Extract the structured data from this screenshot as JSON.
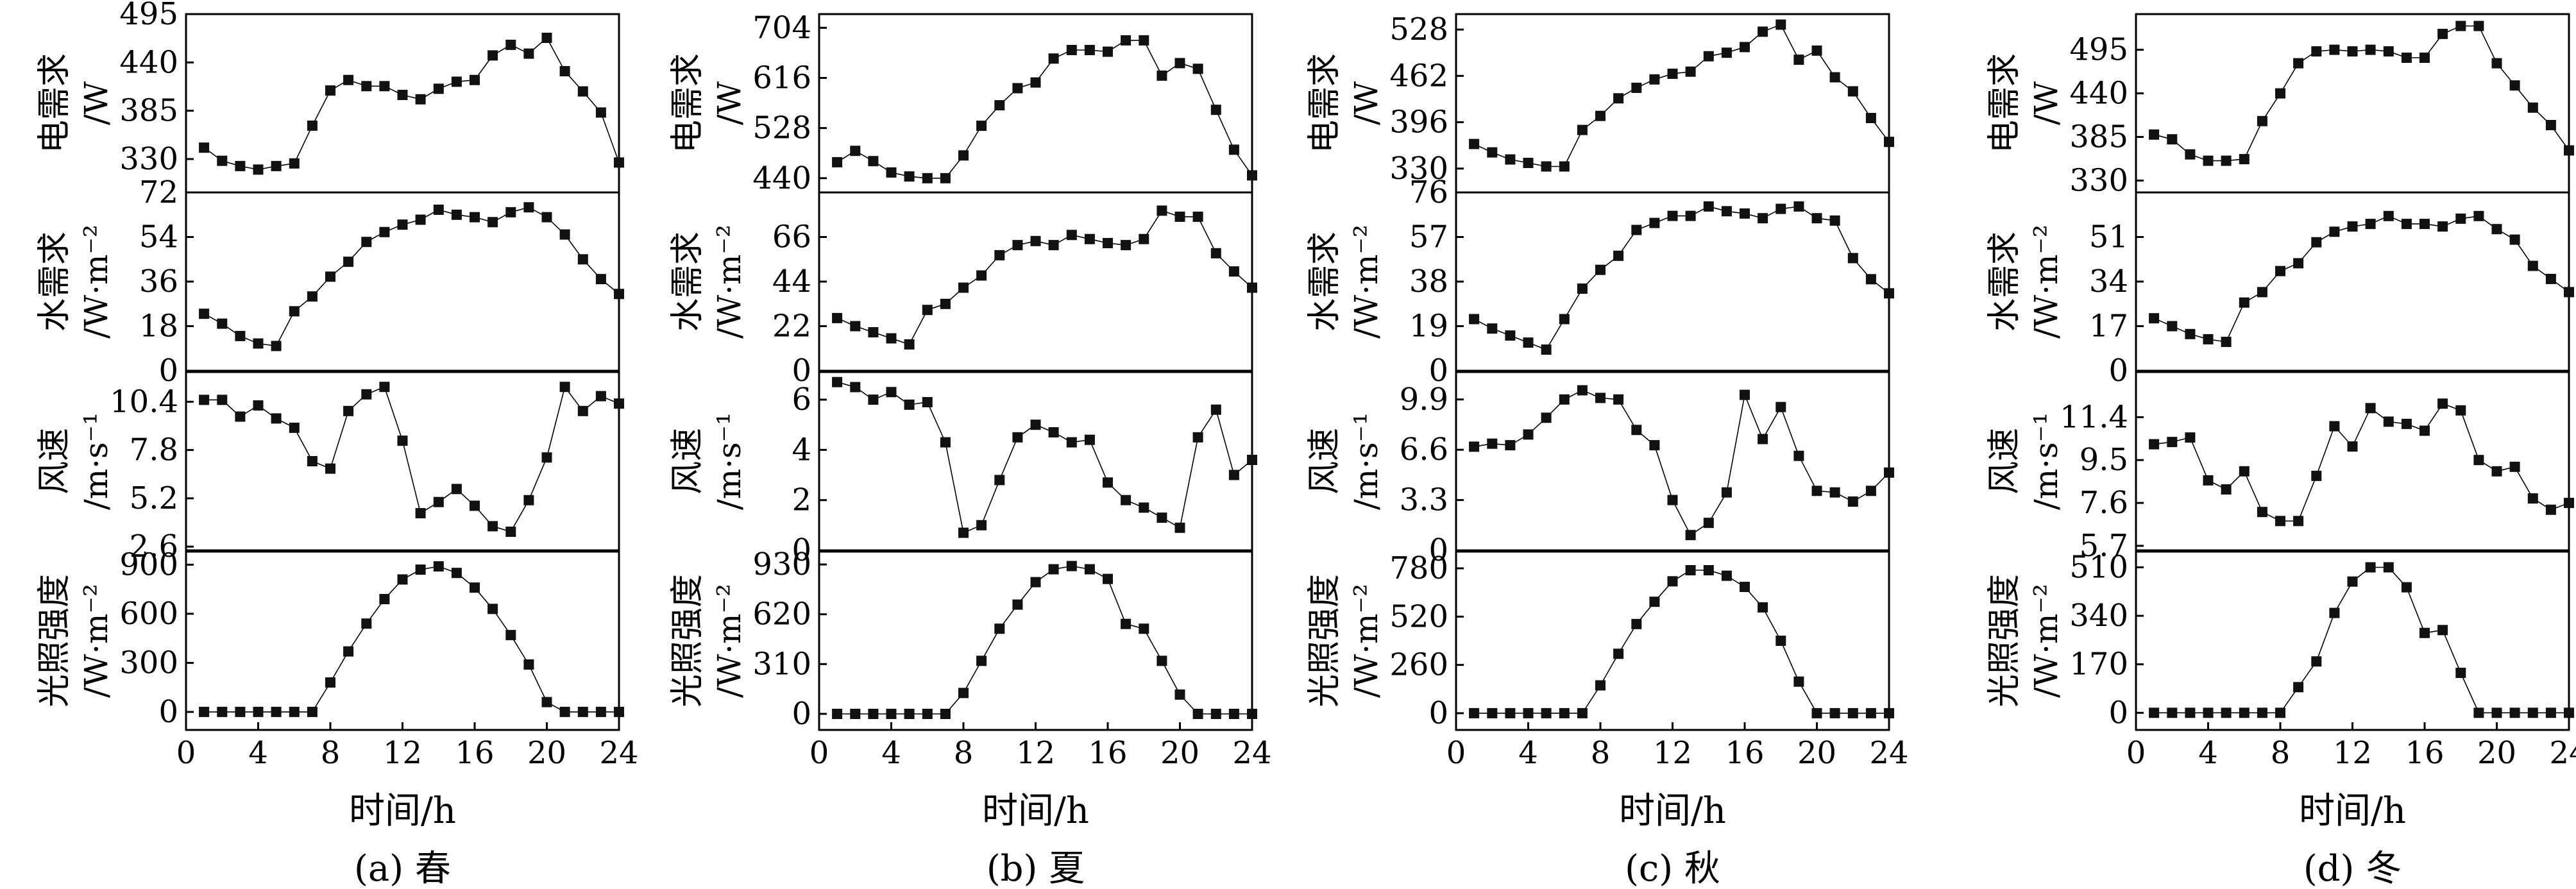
{
  "xlabel": "时间/h",
  "x_ticks": [
    0,
    4,
    8,
    12,
    16,
    20,
    24
  ],
  "row_labels": [
    {
      "name": "电需求",
      "unit": "/W"
    },
    {
      "name": "水需求",
      "unit": "/W·m⁻²"
    },
    {
      "name": "风速",
      "unit": "/m·s⁻¹"
    },
    {
      "name": "光照强度",
      "unit": "/W·m⁻²"
    }
  ],
  "panels": [
    {
      "caption": "(a) 春"
    },
    {
      "caption": "(b) 夏"
    },
    {
      "caption": "(c) 秋"
    },
    {
      "caption": "(d) 冬"
    }
  ],
  "chart_data": [
    {
      "type": "line",
      "caption": "(a) 春",
      "xlabel": "时间/h",
      "xlim": [
        0,
        24
      ],
      "x": [
        1,
        2,
        3,
        4,
        5,
        6,
        7,
        8,
        9,
        10,
        11,
        12,
        13,
        14,
        15,
        16,
        17,
        18,
        19,
        20,
        21,
        22,
        23,
        24
      ],
      "rows": [
        {
          "ylabel": "电需求/W",
          "ylim": [
            292,
            495
          ],
          "yticks": [
            330,
            385,
            440,
            495
          ],
          "values": [
            343,
            328,
            322,
            318,
            322,
            325,
            368,
            408,
            420,
            413,
            413,
            403,
            398,
            410,
            418,
            420,
            448,
            460,
            450,
            468,
            430,
            407,
            383,
            326
          ]
        },
        {
          "ylabel": "水需求/W·m⁻²",
          "ylim": [
            0,
            72
          ],
          "yticks": [
            0,
            18,
            36,
            54,
            72
          ],
          "values": [
            23,
            19,
            14,
            11,
            10,
            24,
            30,
            38,
            44,
            52,
            56,
            59,
            61,
            65,
            63,
            62,
            60,
            64,
            66,
            62,
            55,
            45,
            37,
            31
          ]
        },
        {
          "ylabel": "风速/m·s⁻¹",
          "ylim": [
            2.4,
            12.0
          ],
          "yticks": [
            2.6,
            5.2,
            7.8,
            10.4
          ],
          "values": [
            10.5,
            10.5,
            9.6,
            10.2,
            9.5,
            9.0,
            7.2,
            6.8,
            9.9,
            10.8,
            11.2,
            8.3,
            4.4,
            5.0,
            5.7,
            4.8,
            3.7,
            3.4,
            5.1,
            7.4,
            11.2,
            9.9,
            10.7,
            10.3
          ]
        },
        {
          "ylabel": "光照强度/W·m⁻²",
          "ylim": [
            -110,
            980
          ],
          "yticks": [
            0,
            300,
            600,
            900
          ],
          "values": [
            0,
            0,
            0,
            0,
            0,
            0,
            0,
            180,
            370,
            540,
            690,
            810,
            870,
            890,
            850,
            760,
            630,
            470,
            290,
            60,
            0,
            0,
            0,
            0
          ]
        }
      ]
    },
    {
      "type": "line",
      "caption": "(b) 夏",
      "xlabel": "时间/h",
      "xlim": [
        0,
        24
      ],
      "x": [
        1,
        2,
        3,
        4,
        5,
        6,
        7,
        8,
        9,
        10,
        11,
        12,
        13,
        14,
        15,
        16,
        17,
        18,
        19,
        20,
        21,
        22,
        23,
        24
      ],
      "rows": [
        {
          "ylabel": "电需求/W",
          "ylim": [
            415,
            728
          ],
          "yticks": [
            440,
            528,
            616,
            704
          ],
          "values": [
            468,
            488,
            470,
            450,
            443,
            440,
            440,
            480,
            532,
            568,
            598,
            608,
            650,
            665,
            665,
            662,
            682,
            682,
            620,
            642,
            632,
            560,
            490,
            445
          ]
        },
        {
          "ylabel": "水需求/W·m⁻²",
          "ylim": [
            0,
            88
          ],
          "yticks": [
            0,
            22,
            44,
            66
          ],
          "values": [
            26,
            22,
            19,
            16,
            13,
            30,
            33,
            41,
            47,
            57,
            62,
            64,
            62,
            67,
            65,
            63,
            62,
            65,
            79,
            76,
            76,
            58,
            49,
            41
          ]
        },
        {
          "ylabel": "风速/m·s⁻¹",
          "ylim": [
            0,
            7.1
          ],
          "yticks": [
            0,
            2,
            4,
            6
          ],
          "values": [
            6.7,
            6.5,
            6.0,
            6.3,
            5.8,
            5.9,
            4.3,
            0.7,
            1.0,
            2.8,
            4.5,
            5.0,
            4.7,
            4.3,
            4.4,
            2.7,
            2.0,
            1.7,
            1.3,
            0.9,
            4.5,
            5.6,
            3.0,
            3.6
          ]
        },
        {
          "ylabel": "光照强度/W·m⁻²",
          "ylim": [
            -100,
            1010
          ],
          "yticks": [
            0,
            310,
            620,
            930
          ],
          "values": [
            0,
            0,
            0,
            0,
            0,
            0,
            0,
            130,
            330,
            530,
            680,
            820,
            900,
            920,
            900,
            840,
            560,
            530,
            330,
            120,
            0,
            0,
            0,
            0
          ]
        }
      ]
    },
    {
      "type": "line",
      "caption": "(c) 秋",
      "xlabel": "时间/h",
      "xlim": [
        0,
        24
      ],
      "x": [
        1,
        2,
        3,
        4,
        5,
        6,
        7,
        8,
        9,
        10,
        11,
        12,
        13,
        14,
        15,
        16,
        17,
        18,
        19,
        20,
        21,
        22,
        23,
        24
      ],
      "rows": [
        {
          "ylabel": "电需求/W",
          "ylim": [
            296,
            550
          ],
          "yticks": [
            330,
            396,
            462,
            528
          ],
          "values": [
            365,
            353,
            343,
            338,
            333,
            333,
            385,
            405,
            430,
            445,
            457,
            465,
            468,
            490,
            495,
            503,
            525,
            535,
            485,
            498,
            460,
            440,
            402,
            368
          ]
        },
        {
          "ylabel": "水需求/W·m⁻²",
          "ylim": [
            0,
            76
          ],
          "yticks": [
            0,
            19,
            38,
            57,
            76
          ],
          "values": [
            22,
            18,
            15,
            12,
            9,
            22,
            35,
            43,
            49,
            60,
            63,
            66,
            66,
            70,
            68,
            67,
            65,
            69,
            70,
            65,
            64,
            48,
            39,
            33
          ]
        },
        {
          "ylabel": "风速/m·s⁻¹",
          "ylim": [
            0,
            11.7
          ],
          "yticks": [
            0,
            3.3,
            6.6,
            9.9
          ],
          "values": [
            6.8,
            7.0,
            6.9,
            7.6,
            8.7,
            9.9,
            10.5,
            10.0,
            9.9,
            7.9,
            6.9,
            3.3,
            1.0,
            1.8,
            3.8,
            10.2,
            7.3,
            9.4,
            6.2,
            3.9,
            3.8,
            3.2,
            3.9,
            5.1
          ]
        },
        {
          "ylabel": "光照强度/W·m⁻²",
          "ylim": [
            -90,
            870
          ],
          "yticks": [
            0,
            260,
            520,
            780
          ],
          "values": [
            0,
            0,
            0,
            0,
            0,
            0,
            0,
            150,
            320,
            480,
            600,
            710,
            770,
            770,
            740,
            680,
            570,
            390,
            170,
            0,
            0,
            0,
            0,
            0
          ]
        }
      ]
    },
    {
      "type": "line",
      "caption": "(d) 冬",
      "xlabel": "时间/h",
      "xlim": [
        0,
        24
      ],
      "x": [
        1,
        2,
        3,
        4,
        5,
        6,
        7,
        8,
        9,
        10,
        11,
        12,
        13,
        14,
        15,
        16,
        17,
        18,
        19,
        20,
        21,
        22,
        23,
        24
      ],
      "rows": [
        {
          "ylabel": "电需求/W",
          "ylim": [
            315,
            540
          ],
          "yticks": [
            330,
            385,
            440,
            495
          ],
          "values": [
            388,
            382,
            363,
            355,
            355,
            357,
            405,
            440,
            478,
            493,
            495,
            493,
            495,
            493,
            485,
            485,
            515,
            525,
            525,
            478,
            450,
            422,
            400,
            368
          ]
        },
        {
          "ylabel": "水需求/W·m⁻²",
          "ylim": [
            0,
            68
          ],
          "yticks": [
            0,
            17,
            34,
            51
          ],
          "values": [
            20,
            17,
            14,
            12,
            11,
            26,
            30,
            38,
            41,
            49,
            53,
            55,
            56,
            59,
            56,
            56,
            55,
            58,
            59,
            54,
            50,
            40,
            35,
            30
          ]
        },
        {
          "ylabel": "风速/m·s⁻¹",
          "ylim": [
            5.5,
            13.4
          ],
          "yticks": [
            5.7,
            7.6,
            9.5,
            11.4
          ],
          "values": [
            10.2,
            10.3,
            10.5,
            8.6,
            8.2,
            9.0,
            7.2,
            6.8,
            6.8,
            8.8,
            11.0,
            10.1,
            11.8,
            11.2,
            11.1,
            10.8,
            12.0,
            11.7,
            9.5,
            9.0,
            9.2,
            7.8,
            7.3,
            7.6
          ]
        },
        {
          "ylabel": "光照强度/W·m⁻²",
          "ylim": [
            -60,
            565
          ],
          "yticks": [
            0,
            170,
            340,
            510
          ],
          "values": [
            0,
            0,
            0,
            0,
            0,
            0,
            0,
            0,
            90,
            180,
            350,
            460,
            510,
            510,
            440,
            280,
            290,
            140,
            0,
            0,
            0,
            0,
            0,
            0
          ]
        }
      ]
    }
  ]
}
